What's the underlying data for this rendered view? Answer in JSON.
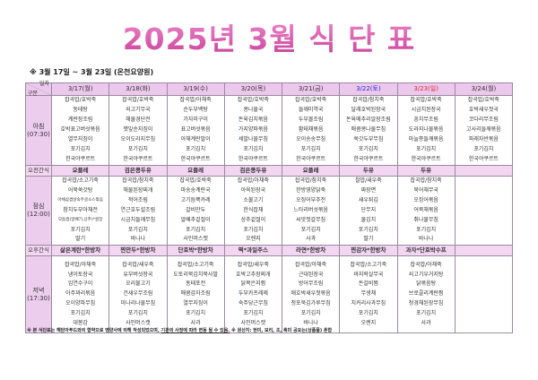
{
  "title": "2025년 3월 식 단 표",
  "subtitle": "※ 3월 17일 ~ 3월 23일 (온천요양원)",
  "corner": {
    "top": "일자",
    "bottom": "구분"
  },
  "colors": {
    "title": "#d65aa8",
    "header_bg": "#ecc8ec",
    "saturday": "#2a2ae0",
    "sunday": "#e02a3a"
  },
  "days": [
    "3/17(월)",
    "3/18(화)",
    "3/19(수)",
    "3/20(목)",
    "3/21(금)",
    "3/22(토)",
    "3/23(일)",
    "3/24(월)"
  ],
  "meals": {
    "breakfast": {
      "label": "아침",
      "time": "(07:30)",
      "menus": [
        [
          "잡곡밥/호박죽",
          "동태탕",
          "계란장조림",
          "호박표고버섯볶음",
          "열무지짐이",
          "포기김치",
          "한국야쿠르트"
        ],
        [
          "잡곡밥/호박죽",
          "쇠고기무국",
          "해물경단전",
          "깻잎순지짐이",
          "오이도라지무침",
          "포기김치",
          "한국야쿠르트"
        ],
        [
          "잡곡밥/아채죽",
          "순두부백탕",
          "가자미구이",
          "표고버섯볶음",
          "아채계란말이",
          "포기김치",
          "한국야쿠르트"
        ],
        [
          "잡곡밥/호박죽",
          "콩나물국",
          "돈육김치볶음",
          "가지양파볶음",
          "세발나물무침",
          "포기김치",
          "한국야쿠르트"
        ],
        [
          "잡곡밥/호박죽",
          "들깨미역국",
          "두부볼조림",
          "황태채볶음",
          "오이송송무침",
          "포기김치",
          "한국야쿠르트"
        ],
        [
          "잡곡밥/참치죽",
          "달래호박된장국",
          "돈육메추리알장조림",
          "매콤콩나물무침",
          "쑥갓두부무침",
          "포기김치",
          "한국야쿠르트"
        ],
        [
          "잡곡밥/호박죽",
          "시금치된장국",
          "꽁치무조림",
          "도라지나물볶음",
          "마늘쫑들깨볶음",
          "포기김치",
          "한국야쿠르트"
        ],
        [
          "잡곡밥/호박죽",
          "호박새우젓국",
          "코다리무조림",
          "고사리들깨볶음",
          "파래자반볶음",
          "포기김치",
          "한국야쿠르트"
        ]
      ]
    },
    "morning_snack": {
      "label": "오전간식",
      "menus": [
        "요플레",
        "검은콩두유",
        "요플레",
        "검은콩두유",
        "요플레",
        "두유",
        "두유",
        ""
      ]
    },
    "lunch": {
      "label": "점심",
      "time": "(12:00)",
      "menus": [
        [
          "잡곡밥/소고기죽",
          "어묵쑥갓탕",
          "아채삼겹살숙주굴소스볶음",
          "참치두부아채전",
          "모둠쌈(알배기,상추)*쌈장",
          "포기김치",
          "딸기"
        ],
        [
          "잡곡밥/참치죽",
          "해물된장찌개",
          "적어조림",
          "연근호두설조림",
          "시금치들깨무침",
          "포기김치",
          "바나나"
        ],
        [
          "잡곡밥/호박죽",
          "마송송계란국",
          "고기듬뿍카레",
          "갈비만두",
          "알배추겉절이",
          "포기김치",
          "사인머스캣"
        ],
        [
          "잡곡밥/아채죽",
          "아욱된장국",
          "소불고기",
          "한식잡채",
          "상추겉절이",
          "포기김치",
          "오렌지"
        ],
        [
          "잡곡밥/참치죽",
          "한방영양닭죽",
          "오징어부추전",
          "느타리버섯볶음",
          "씨앗젓갈무침",
          "포기김치",
          "사과"
        ],
        [
          "찰밥/새우죽",
          "짜장면",
          "새우튀김",
          "단무지",
          "물김치",
          "포기김치",
          "딸기"
        ],
        [
          "잡곡밥/참치죽",
          "북어채무국",
          "오징어볶음",
          "어묵채볶음",
          "취나물무침",
          "포기김치",
          "바나나"
        ],
        [
          "",
          "",
          "",
          "",
          "",
          "",
          ""
        ]
      ]
    },
    "afternoon_snack": {
      "label": "오후간식",
      "menus": [
        "삶은계란*한방차",
        "찐만두*한방차",
        "단호박*한방차",
        "떡*과일주스",
        "라면*한방차",
        "찐감자*한방차",
        "과자*단호박수프",
        ""
      ]
    },
    "dinner": {
      "label": "저녁",
      "time": "(17:30)",
      "menus": [
        [
          "잡곡밥/아채죽",
          "냉이토장국",
          "임연수구이",
          "아주꽈리볶음",
          "오이양파무침",
          "포기김치",
          "대봉감"
        ],
        [
          "잡곡밥/새우죽",
          "유부버섯장국",
          "오리불고기",
          "건새우무조림",
          "미나리나물무침",
          "포기김치",
          "사인머스캣"
        ],
        [
          "잡곡밥/소고기죽",
          "도토리묵김치묵사발",
          "동태포전",
          "매콤감자조림",
          "열무지짐이",
          "포기김치",
          "사과"
        ],
        [
          "잡곡밥/새우죽",
          "호박고추장찌개",
          "닭목은지찜",
          "두부카프레제",
          "숙주당근무침",
          "포기김치",
          "사인머스캣"
        ],
        [
          "잡곡밥/아채죽",
          "근대된장국",
          "방어무조림",
          "애호박새우젓볶음",
          "청포묵김가루무침",
          "포기김치",
          "바나나"
        ],
        [
          "잡곡밥/소고기죽",
          "바지락살무국",
          "돈갈비찜",
          "무생채",
          "치커리사과무침",
          "포기김치",
          "오렌지"
        ],
        [
          "잡곡밥/아채죽",
          "쇠고기우거지탕",
          "닭볶음탕",
          "브로콜리계란찜",
          "청경채된장무침",
          "포기김치",
          "사과"
        ],
        [
          "",
          "",
          "",
          "",
          "",
          "",
          ""
        ]
      ]
    }
  },
  "footer": {
    "part1": "※ 본 식단표는 해담아푸드와의 협약으로 영양사에 의해 작성되었으며, ",
    "part2": "기관의 사정에 따라 변동 될 수 있음.",
    "part3": " ※ 원산지: 현미, 보리, 조, 흑미 공요는(상품품) 혼합"
  }
}
